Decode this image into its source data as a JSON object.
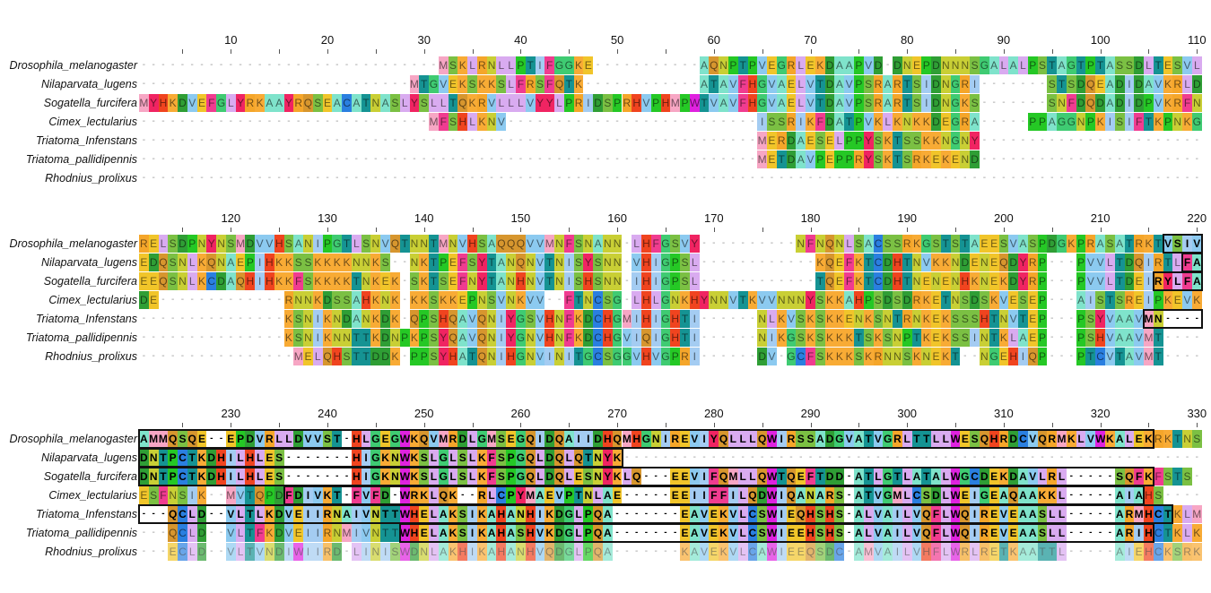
{
  "species": [
    "Drosophila_melanogaster",
    "Nilaparvata_lugens",
    "Sogatella_furcifera",
    "Cimex_lectularius",
    "Triatoma_Infenstans",
    "Triatoma_pallidipennis",
    "Rhodnius_prolixus"
  ],
  "blocks": [
    {
      "start": 1,
      "ruler": [
        "10",
        "20",
        "30",
        "40",
        "50",
        "60",
        "70",
        "80",
        "90",
        "100",
        "110"
      ],
      "rows": [
        "-------------------------------MSKLRNLLPTIFGGKE-----------AQNPTPVEGRLEKDAAPVD-DNEPDNNNSGALALPSTAGTPTASSDLTESVL",
        "----------------------------MTGVEKSKKSLFRSFQTK------------ATAVFHGVAELVTDAVPSRARTSIDNGRI-------STSDQEADIDAVKRLD",
        "MYHKDVEFGLYRKAAYRQSEACATNASLYSLLTQKRVLLLVYYLPRIDSPRHVPHMPWTVAVFHGVAELVTDAVPSRARTSIDNGKS-------SNFDQDADIDPVKRFN",
        "------------------------------MFSHLKNV--------------------------ISSRIKFDATPVKLKNKKDEGRA-----PPAGGNPKISIFTKPNKG",
        "----------------------------------------------------------------MERDAESELPPYSKTSSKKNGNY-----------------------",
        "----------------------------------------------------------------METDAVPEPPRYSKTSRKEKEND-----------------------",
        "--------------------------------------------------------------------------------------------------------------"
      ],
      "boxes": []
    },
    {
      "start": 111,
      "ruler": [
        "120",
        "130",
        "140",
        "150",
        "160",
        "170",
        "180",
        "190",
        "200",
        "210",
        "220"
      ],
      "rows": [
        "RELSDPNYNSMDVVHSANIPGTLSNVQTNNTMNVHSAQQQVVMNFSNANN-LHFGSVY----------NFNQNLSACSSRKGSTSTAEESVASPDGKPRASATRKTVSIV",
        "EDQSNLKQNAEPIHKKSSKKKKNNKS--NKTPEFSYTANQNVTNISYSNN-VHIGPSL------------KQEFKTCDHTNVKKNDENEQDYRP---PVVLTDQIRTLFA",
        "EEQSNLKCDAQHIHKKFSKKKKTNKEK-SKTSEFNYTANHNVTNISHSNN-IHIGPSL------------TQEFKTCDHTNENENHKNEKDYRP---PVVLTDEIRYLFA",
        "DE-------------RNNKDSSAHKNK-KKSKKEPNSVNKVV--FTNCSG-LHLGNKHYNNVTKVVNNNYSKKAHPSDSDRKETNSDSKVESEP---AISTSREIPKEVK",
        "---------------KSNIKNDANKDK-QPSHQAVQNIYGSVHNFKDCHGMIHIGHTI------NLKVSKSKKENKSNTRNKEKSSSHTNVTEP---PSYVAAVMN----",
        "---------------KSNIKNNTTKDNPKPSYQAVQNIYGNVHNFKDCHGVIQIGHTI------NIKGSKSKKKTSKSNPTKEKSSINTKLAEP---PSHVAAVMT----",
        "----------------MELQHSTTDDK-PPSYHATQNIHGNVINITGCSGGVHVGPRI------DV-GCFSKKKSKRNNSKNEKT--NGEHIQP---PTCVTAVMT----"
      ],
      "boxes": [
        [
          0,
          107,
          110
        ],
        [
          1,
          109,
          110
        ],
        [
          2,
          106,
          110
        ],
        [
          4,
          105,
          110
        ]
      ]
    },
    {
      "start": 221,
      "ruler": [
        "230",
        "240",
        "250",
        "260",
        "270",
        "280",
        "290",
        "300",
        "310",
        "320",
        "330"
      ],
      "rows": [
        "AMMQSQE--EPDVRLLDVVST-HLGEGWKQVMRDLGMSEGQIDQAIIDHQMHGNIREVIYQLLLQWIRSSADGVATVGRLTTLLWESQHRDCVQRMKLVWKALEKRKTNS",
        "DNTPCTKDHILHLES-------HIGKNWKSLGLSLKFSPGQLDQLQTNYK------------------------------------------------------------",
        "DNTPCTKDHILHLES-------HIGKNWKSLGLSLKFSPGQLDQLESNYKLQ---EEVIFQMLLQWTQEFTDD-ATLGTLATALWGCDEKDAVLRL-----SQFKFSTS-",
        "ESFNSIK--MVTQPDFDIVKT-FVFD-WRKLQK--RLCPYMAEVPTNLAE-----EEIIFFILQDWIQANARS-ATVGMLCSDLWEIGEAQAAKKL-----AIAHS----",
        "---QCLD--VLTLKDVEIIRNAIVNTTWHELAKSIKAHANHIKDGLPQA-------EAVEKVLCSWIEQHSHS-ALVAILVQFLWQIREVEAASLL-----ARMHCTKLM",
        "---QCLD--VLTFKDVEIIRNMIVNTTWHELAKSIKAHASHVKDGLPQA-------EAVEKVLCSWIEEHSHS-ALVAILVQFLWQIREVEAASLL-----ARIHCTKLK",
        "---ECLD--VLTVNDIWIIRD-LINISWDNLAKHIKAHANHVQDGLPQA-------KAVEKVLCAWIEEQSDC-AMVAILVHFLWRLRETKAATTL-----AIEHCKSRK"
      ],
      "boxes": [
        [
          0,
          1,
          105
        ],
        [
          1,
          1,
          50
        ],
        [
          2,
          1,
          105
        ],
        [
          3,
          16,
          104
        ],
        [
          4,
          1,
          107
        ],
        [
          5,
          28,
          105
        ]
      ]
    }
  ],
  "residue_colors": {
    "A": "#7fe3cb",
    "R": "#f5a62a",
    "N": "#c9cf35",
    "D": "#2f9e35",
    "C": "#2a7fe0",
    "Q": "#d7962e",
    "E": "#f1c52a",
    "G": "#3fcb72",
    "H": "#f0441f",
    "I": "#a4ccf2",
    "L": "#d9abf0",
    "K": "#f8ab35",
    "M": "#f7a6c4",
    "F": "#f03c90",
    "P": "#25c825",
    "S": "#7bc043",
    "T": "#159393",
    "W": "#df22df",
    "Y": "#f02462",
    "V": "#8ccaf0"
  }
}
